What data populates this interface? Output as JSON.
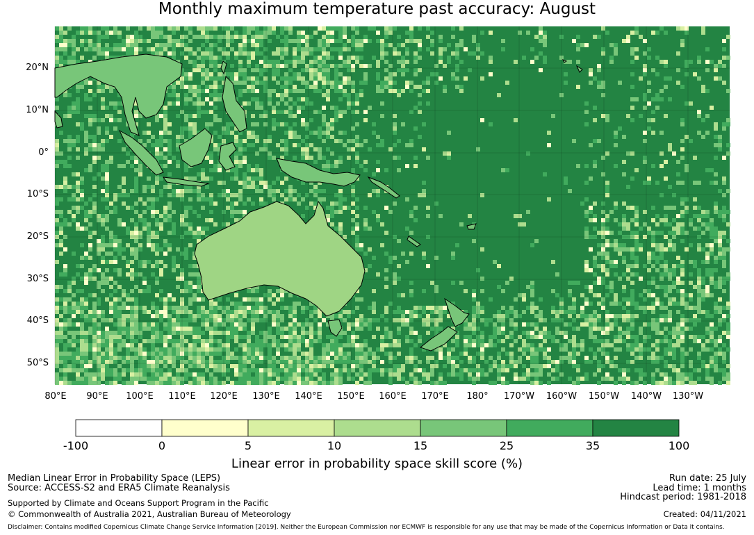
{
  "title": "Monthly maximum temperature past accuracy: August",
  "map": {
    "lat_labels": [
      "20°N",
      "10°N",
      "0°",
      "10°S",
      "20°S",
      "30°S",
      "40°S",
      "50°S"
    ],
    "lon_labels": [
      "80°E",
      "90°E",
      "100°E",
      "110°E",
      "120°E",
      "130°E",
      "140°E",
      "150°E",
      "160°E",
      "170°E",
      "180°",
      "170°W",
      "160°W",
      "150°W",
      "140°W",
      "130°W"
    ],
    "lon_range": [
      80,
      240
    ],
    "lat_range": [
      -55,
      30
    ]
  },
  "colorbar": {
    "labels": [
      "-100",
      "0",
      "5",
      "10",
      "15",
      "25",
      "35",
      "100"
    ],
    "colors": [
      "#ffffff",
      "#ffffcc",
      "#d9f0a3",
      "#addd8e",
      "#78c679",
      "#41ab5d",
      "#238443"
    ],
    "title": "Linear error in probability space skill score (%)"
  },
  "footer": {
    "line1": "Median Linear Error in Probability Space (LEPS)",
    "line2": "Source: ACCESS-S2 and ERA5 Climate Reanalysis",
    "support": "Supported by Climate and Oceans Support Program in the Pacific",
    "copyright": "© Commonwealth of Australia 2021, Australian Bureau of Meteorology",
    "run_date": "Run date: 25 July",
    "lead_time": "Lead time: 1 months",
    "hindcast": "Hindcast period: 1981-2018",
    "created": "Created: 04/11/2021",
    "disclaimer": "Disclaimer: Contains modified Copernicus Climate Change Service Information [2019]. Neither the European Commission nor ECMWF is responsible for any use that may be made of the Copernicus Information or Data it contains."
  }
}
